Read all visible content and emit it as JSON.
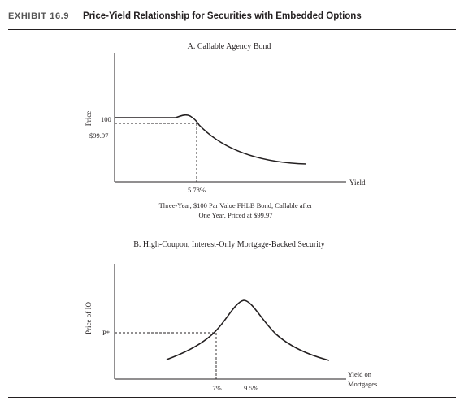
{
  "exhibit": {
    "label": "EXHIBIT 16.9",
    "title": "Price-Yield Relationship for Securities with Embedded Options"
  },
  "panel_a": {
    "title": "A. Callable Agency Bond",
    "ylabel": "Price",
    "xlabel": "Yield",
    "price_tick_100": "100",
    "price_tick_9997": "$99.97",
    "yield_tick": "5.78%",
    "caption_line1": "Three-Year, $100 Par Value FHLB Bond, Callable after",
    "caption_line2": "One Year, Priced at $99.97"
  },
  "panel_b": {
    "title": "B. High-Coupon, Interest-Only Mortgage-Backed Security",
    "ylabel": "Price of IO",
    "xlabel_line1": "Yield on",
    "xlabel_line2": "Mortgages",
    "price_tick": "P*",
    "yield_tick_7": "7%",
    "yield_tick_95": "9.5%"
  },
  "colors": {
    "ink": "#231f20",
    "exhibit_label": "#555555"
  }
}
